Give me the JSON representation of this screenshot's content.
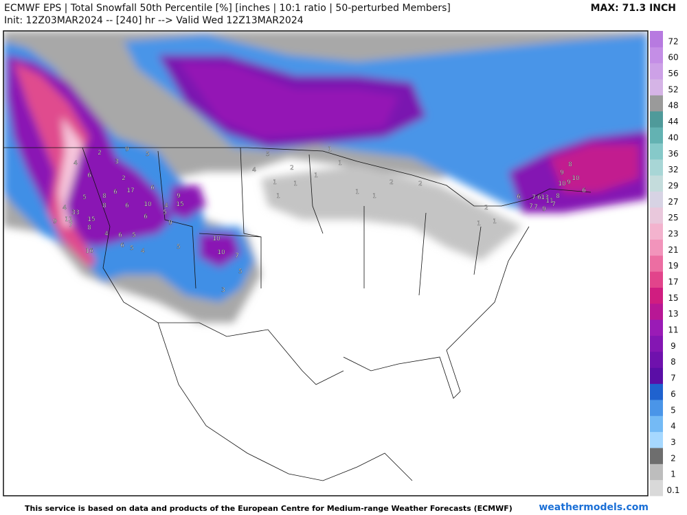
{
  "header": {
    "title": "ECMWF EPS | Total Snowfall 50th Percentile [%] [inches | 10:1 ratio | 50-perturbed Members]",
    "init": "Init: 12Z03MAR2024 -- [240] hr --> Valid Wed 12Z13MAR2024",
    "max": "MAX: 71.3 INCH"
  },
  "colorbar": {
    "labels": [
      0.1,
      1,
      2,
      3,
      4,
      5,
      6,
      7,
      8,
      9,
      11,
      13,
      15,
      17,
      19,
      21,
      23,
      25,
      27,
      29,
      32,
      36,
      40,
      44,
      48,
      52,
      56,
      60,
      72
    ],
    "colors": [
      "#d9d9d9",
      "#bdbdbd",
      "#6e6e6e",
      "#a6d8ff",
      "#74baf5",
      "#4a95e8",
      "#1f62cf",
      "#5a0ea6",
      "#6f11ad",
      "#8416b3",
      "#9a1bb6",
      "#b81795",
      "#d01d80",
      "#e2448b",
      "#ec6ea2",
      "#f294bb",
      "#f3b3ce",
      "#e9c8dc",
      "#d7d3e4",
      "#c4dcdc",
      "#a8d6d6",
      "#86c9c9",
      "#63b2b2",
      "#4f9a9a",
      "#9a9a9a",
      "#d5b4e6",
      "#cda1e7",
      "#c48ee6",
      "#b77ae0"
    ]
  },
  "map_labels": [
    "9",
    "5",
    "2",
    "4",
    "3",
    "2",
    "6",
    "17",
    "6",
    "6",
    "8",
    "5",
    "10",
    "6",
    "8",
    "4",
    "33",
    "11",
    "15",
    "9",
    "7",
    "8",
    "9",
    "15",
    "4",
    "5",
    "6",
    "4",
    "6",
    "5",
    "6",
    "5",
    "4",
    "16",
    "9",
    "5",
    "10",
    "10",
    "7",
    "5",
    "3",
    "8",
    "9",
    "10",
    "10",
    "9",
    "6",
    "7",
    "6",
    "13",
    "11",
    "8",
    "7",
    "7",
    "9",
    "7",
    "6",
    "5",
    "4",
    "2",
    "1",
    "1",
    "1",
    "1",
    "1",
    "1",
    "1",
    "1",
    "2",
    "2",
    "2",
    "1",
    "1",
    "1"
  ],
  "footer": {
    "text": "This service is based on data and products of the European Centre for Medium-range Weather Forecasts (ECMWF)",
    "brand": "weathermodels.com"
  }
}
